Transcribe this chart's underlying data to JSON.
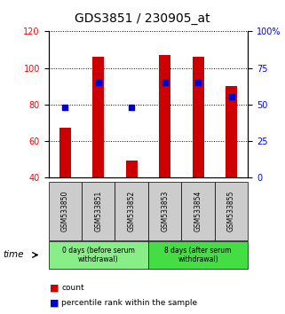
{
  "title": "GDS3851 / 230905_at",
  "samples": [
    "GSM533850",
    "GSM533851",
    "GSM533852",
    "GSM533853",
    "GSM533854",
    "GSM533855"
  ],
  "counts": [
    67,
    106,
    49,
    107,
    106,
    90
  ],
  "percentiles": [
    48,
    65,
    48,
    65,
    65,
    55
  ],
  "bar_color": "#cc0000",
  "dot_color": "#0000cc",
  "left_ylim": [
    40,
    120
  ],
  "left_yticks": [
    40,
    60,
    80,
    100,
    120
  ],
  "right_ylim": [
    0,
    100
  ],
  "right_yticks": [
    0,
    25,
    50,
    75,
    100
  ],
  "right_yticklabels": [
    "0",
    "25",
    "50",
    "75",
    "100%"
  ],
  "groups": [
    {
      "label": "0 days (before serum\nwithdrawal)",
      "color": "#88ee88"
    },
    {
      "label": "8 days (after serum\nwithdrawal)",
      "color": "#44dd44"
    }
  ],
  "legend_count_label": "count",
  "legend_pct_label": "percentile rank within the sample",
  "sample_box_color": "#cccccc",
  "title_fontsize": 10,
  "tick_fontsize": 7,
  "bar_width": 0.35
}
